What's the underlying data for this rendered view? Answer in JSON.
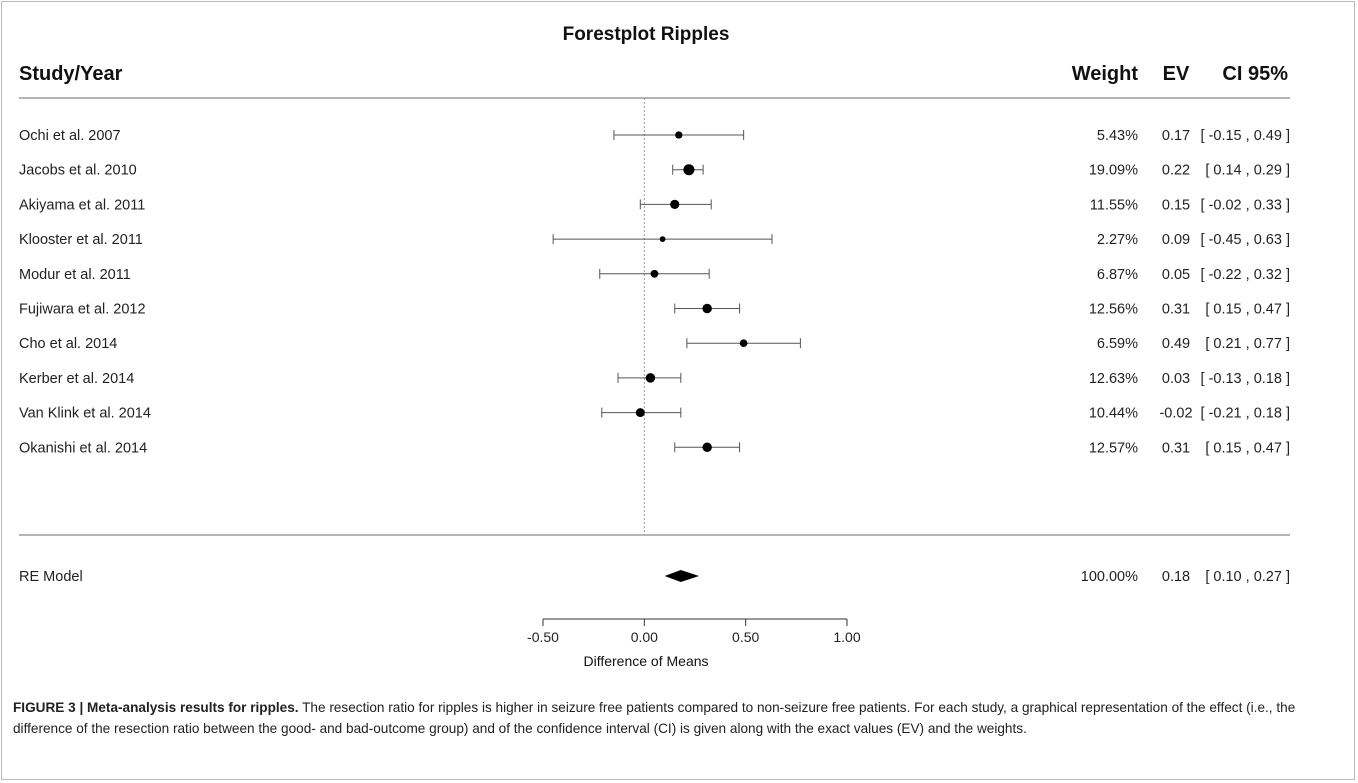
{
  "chart_data": {
    "type": "forest",
    "title": "Forestplot Ripples",
    "column_headers": {
      "study": "Study/Year",
      "weight": "Weight",
      "ev": "EV",
      "ci": "CI 95%"
    },
    "xlabel": "Difference of Means",
    "xlim": [
      -0.5,
      1.0
    ],
    "xticks": [
      "-0.50",
      "0.00",
      "0.50",
      "1.00"
    ],
    "xtick_values": [
      -0.5,
      0.0,
      0.5,
      1.0
    ],
    "reference_line": 0,
    "studies": [
      {
        "label": "Ochi et al. 2007",
        "weight": "5.43%",
        "ev_text": "0.17",
        "ci_text": "[ -0.15 , 0.49 ]",
        "estimate": 0.17,
        "lower": -0.15,
        "upper": 0.49,
        "w": 5.43
      },
      {
        "label": "Jacobs et al. 2010",
        "weight": "19.09%",
        "ev_text": "0.22",
        "ci_text": "[ 0.14 , 0.29 ]",
        "estimate": 0.22,
        "lower": 0.14,
        "upper": 0.29,
        "w": 19.09
      },
      {
        "label": "Akiyama et al. 2011",
        "weight": "11.55%",
        "ev_text": "0.15",
        "ci_text": "[ -0.02 , 0.33 ]",
        "estimate": 0.15,
        "lower": -0.02,
        "upper": 0.33,
        "w": 11.55
      },
      {
        "label": "Klooster et al. 2011",
        "weight": "2.27%",
        "ev_text": "0.09",
        "ci_text": "[ -0.45 , 0.63 ]",
        "estimate": 0.09,
        "lower": -0.45,
        "upper": 0.63,
        "w": 2.27
      },
      {
        "label": "Modur et al. 2011",
        "weight": "6.87%",
        "ev_text": "0.05",
        "ci_text": "[ -0.22 , 0.32 ]",
        "estimate": 0.05,
        "lower": -0.22,
        "upper": 0.32,
        "w": 6.87
      },
      {
        "label": "Fujiwara et al. 2012",
        "weight": "12.56%",
        "ev_text": "0.31",
        "ci_text": "[ 0.15 , 0.47 ]",
        "estimate": 0.31,
        "lower": 0.15,
        "upper": 0.47,
        "w": 12.56
      },
      {
        "label": "Cho et al. 2014",
        "weight": "6.59%",
        "ev_text": "0.49",
        "ci_text": "[ 0.21 , 0.77 ]",
        "estimate": 0.49,
        "lower": 0.21,
        "upper": 0.77,
        "w": 6.59
      },
      {
        "label": "Kerber et al. 2014",
        "weight": "12.63%",
        "ev_text": "0.03",
        "ci_text": "[ -0.13 , 0.18 ]",
        "estimate": 0.03,
        "lower": -0.13,
        "upper": 0.18,
        "w": 12.63
      },
      {
        "label": "Van Klink et al. 2014",
        "weight": "10.44%",
        "ev_text": "-0.02",
        "ci_text": "[ -0.21 , 0.18 ]",
        "estimate": -0.02,
        "lower": -0.21,
        "upper": 0.18,
        "w": 10.44
      },
      {
        "label": "Okanishi et al. 2014",
        "weight": "12.57%",
        "ev_text": "0.31",
        "ci_text": "[ 0.15 , 0.47 ]",
        "estimate": 0.31,
        "lower": 0.15,
        "upper": 0.47,
        "w": 12.57
      }
    ],
    "summary": {
      "label": "RE Model",
      "weight": "100.00%",
      "ev_text": "0.18",
      "ci_text": "[ 0.10 , 0.27 ]",
      "estimate": 0.18,
      "lower": 0.1,
      "upper": 0.27
    }
  },
  "caption": {
    "lead": "FIGURE 3 | Meta-analysis results for ripples.",
    "body": " The resection ratio for ripples is higher in seizure free patients compared to non-seizure free patients. For each study, a graphical representation of the effect (i.e., the difference of the resection ratio between the good- and bad-outcome group) and of the confidence interval (CI) is given along with the exact values (EV) and the weights."
  }
}
